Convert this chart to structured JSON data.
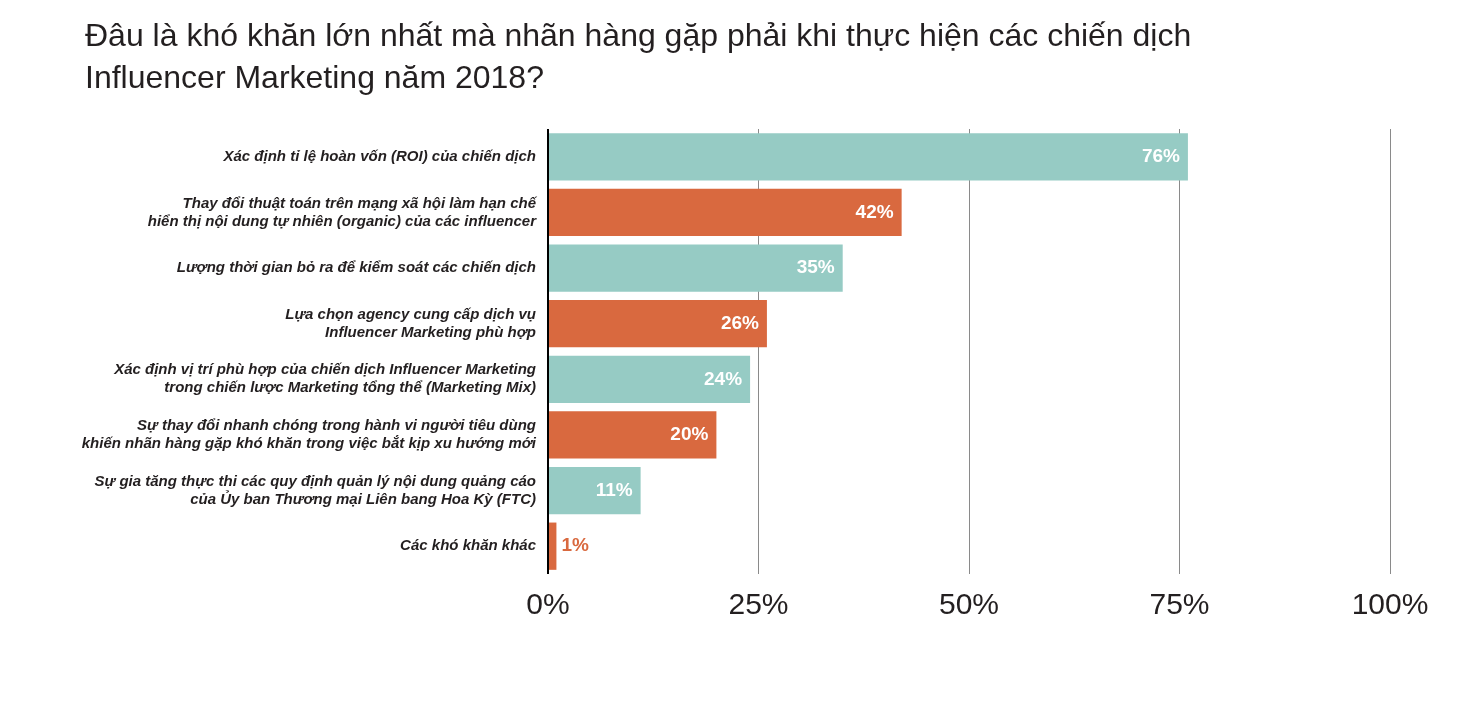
{
  "chart_data": {
    "type": "bar",
    "orientation": "horizontal",
    "title": "Đâu là khó khăn lớn nhất mà nhãn hàng gặp phải khi thực hiện các chiến dịch\nInfluencer Marketing năm 2018?",
    "categories": [
      "Xác định tỉ lệ hoàn vốn (ROI) của chiến dịch",
      "Thay đổi thuật toán trên mạng xã hội làm hạn chế\nhiển thị nội dung tự nhiên (organic) của các influencer",
      "Lượng thời gian bỏ ra để kiểm soát các chiến dịch",
      "Lựa chọn agency cung cấp dịch vụ\nInfluencer Marketing phù hợp",
      "Xác định vị trí phù hợp của chiến dịch Influencer Marketing\ntrong chiến lược Marketing tổng thể (Marketing Mix)",
      "Sự thay đổi nhanh chóng trong hành vi người tiêu dùng\nkhiến nhãn hàng gặp khó khăn trong việc bắt kịp xu hướng mới",
      "Sự gia tăng thực thi các quy định quản lý nội dung quảng cáo\ncủa Ủy ban Thương mại Liên bang Hoa Kỳ (FTC)",
      "Các khó khăn khác"
    ],
    "values": [
      76,
      42,
      35,
      26,
      24,
      20,
      11,
      1
    ],
    "colors": [
      "#96cbc4",
      "#d9693f",
      "#96cbc4",
      "#d9693f",
      "#96cbc4",
      "#d9693f",
      "#96cbc4",
      "#d9693f"
    ],
    "value_labels": [
      "76%",
      "42%",
      "35%",
      "26%",
      "24%",
      "20%",
      "11%",
      "1%"
    ],
    "xlim": [
      0,
      100
    ],
    "xticks": [
      {
        "value": 0,
        "label": "0%"
      },
      {
        "value": 25,
        "label": "25%"
      },
      {
        "value": 50,
        "label": "50%"
      },
      {
        "value": 75,
        "label": "75%"
      },
      {
        "value": 100,
        "label": "100%"
      }
    ],
    "grid": "x",
    "legend": false
  }
}
